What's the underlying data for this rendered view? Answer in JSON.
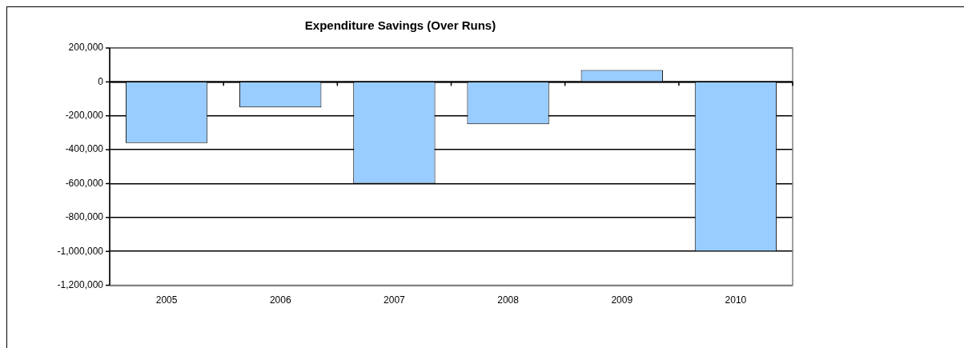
{
  "chart_data": {
    "type": "bar",
    "title": "Expenditure Savings (Over Runs)",
    "categories": [
      "2005",
      "2006",
      "2007",
      "2008",
      "2009",
      "2010"
    ],
    "values": [
      -360000,
      -150000,
      -600000,
      -250000,
      70000,
      -1000000
    ],
    "color": "#99ccff",
    "ylim": [
      -1200000,
      200000
    ],
    "yticks": [
      {
        "value": -1200000,
        "label": "-1,200,000"
      },
      {
        "value": -1000000,
        "label": "-1,000,000"
      },
      {
        "value": -800000,
        "label": "-800,000"
      },
      {
        "value": -600000,
        "label": "-600,000"
      },
      {
        "value": -400000,
        "label": "-400,000"
      },
      {
        "value": -200000,
        "label": "-200,000"
      },
      0,
      {
        "value": 200000,
        "label": "200,000"
      }
    ],
    "grid": "y",
    "legend": false
  }
}
